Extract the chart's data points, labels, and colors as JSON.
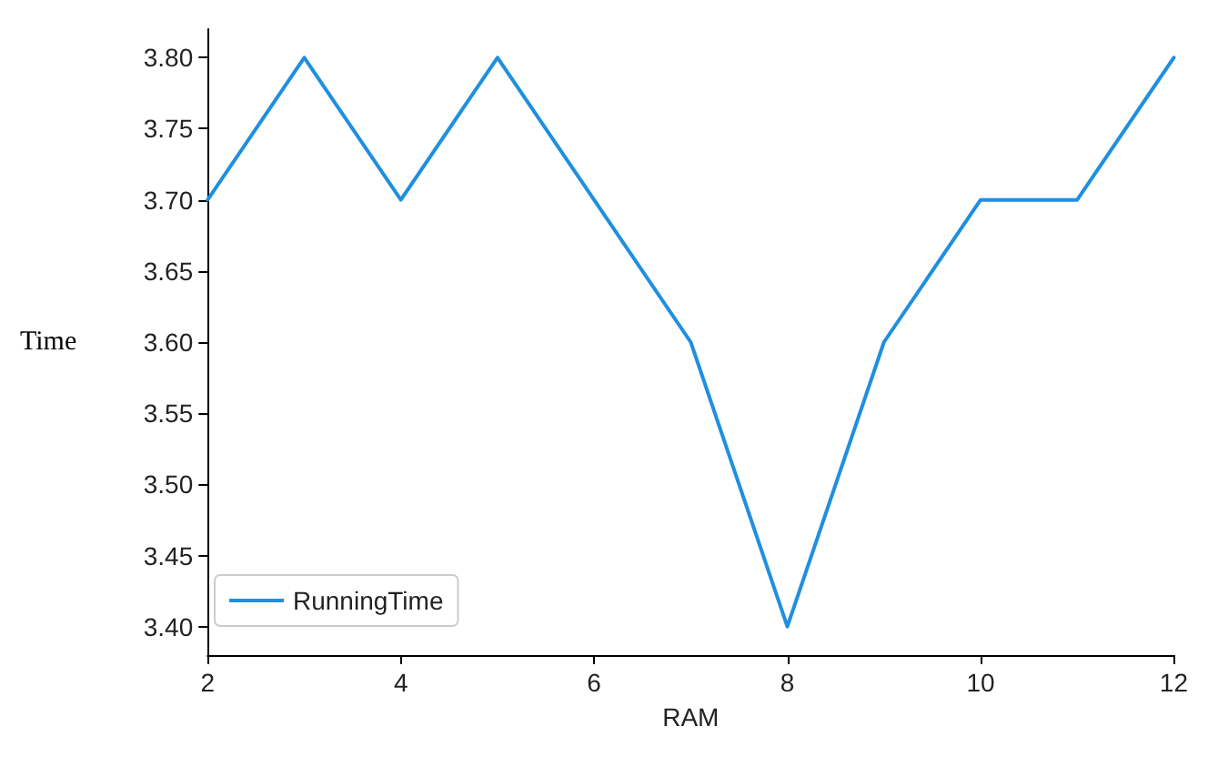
{
  "chart_data": {
    "type": "line",
    "xlabel": "RAM",
    "ylabel": "Time",
    "x": [
      2,
      3,
      4,
      5,
      6,
      7,
      8,
      9,
      10,
      11,
      12
    ],
    "series": [
      {
        "name": "RunningTime",
        "color": "#1f8fe0",
        "values": [
          3.7,
          3.8,
          3.7,
          3.8,
          3.7,
          3.6,
          3.4,
          3.6,
          3.7,
          3.7,
          3.8
        ]
      }
    ],
    "xlim": [
      2,
      12
    ],
    "xticks": [
      2,
      4,
      6,
      8,
      10,
      12
    ],
    "ylim": [
      3.38,
      3.82
    ],
    "yticks": [
      {
        "value": 3.4,
        "label": "3.40"
      },
      {
        "value": 3.45,
        "label": "3.45"
      },
      {
        "value": 3.5,
        "label": "3.50"
      },
      {
        "value": 3.55,
        "label": "3.55"
      },
      {
        "value": 3.6,
        "label": "3.60"
      },
      {
        "value": 3.65,
        "label": "3.65"
      },
      {
        "value": 3.7,
        "label": "3.70"
      },
      {
        "value": 3.75,
        "label": "3.75"
      },
      {
        "value": 3.8,
        "label": "3.80"
      }
    ],
    "legend": "bottom left",
    "grid": false,
    "marker": "none",
    "line_style": "solid"
  }
}
